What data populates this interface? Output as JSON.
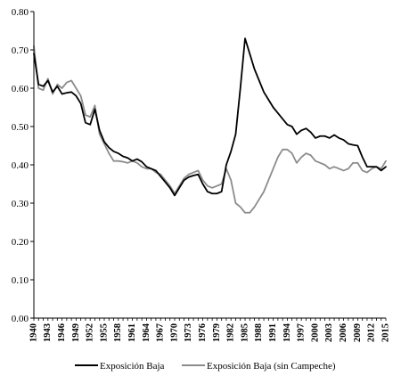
{
  "chart_data": {
    "type": "line",
    "title": "",
    "xlabel": "",
    "ylabel": "",
    "ylim": [
      0,
      0.8
    ],
    "y_ticks": [
      "0.00",
      "0.10",
      "0.20",
      "0.30",
      "0.40",
      "0.50",
      "0.60",
      "0.70",
      "0.80"
    ],
    "xlim": [
      1940,
      2015
    ],
    "x_tick_labels": [
      "1940",
      "1943",
      "1946",
      "1949",
      "1952",
      "1955",
      "1958",
      "1961",
      "1964",
      "1967",
      "1970",
      "1973",
      "1976",
      "1979",
      "1982",
      "1985",
      "1988",
      "1991",
      "1994",
      "1997",
      "2000",
      "2003",
      "2006",
      "2009",
      "2012",
      "2015"
    ],
    "grid": false,
    "legend_position": "bottom",
    "x": [
      1940,
      1941,
      1942,
      1943,
      1944,
      1945,
      1946,
      1947,
      1948,
      1949,
      1950,
      1951,
      1952,
      1953,
      1954,
      1955,
      1956,
      1957,
      1958,
      1959,
      1960,
      1961,
      1962,
      1963,
      1964,
      1965,
      1966,
      1967,
      1968,
      1969,
      1970,
      1971,
      1972,
      1973,
      1974,
      1975,
      1976,
      1977,
      1978,
      1979,
      1980,
      1981,
      1982,
      1983,
      1984,
      1985,
      1986,
      1987,
      1988,
      1989,
      1990,
      1991,
      1992,
      1993,
      1994,
      1995,
      1996,
      1997,
      1998,
      1999,
      2000,
      2001,
      2002,
      2003,
      2004,
      2005,
      2006,
      2007,
      2008,
      2009,
      2010,
      2011,
      2012,
      2013,
      2014,
      2015
    ],
    "series": [
      {
        "name": "Exposición Baja",
        "color": "#000000",
        "values": [
          0.69,
          0.61,
          0.605,
          0.62,
          0.59,
          0.605,
          0.585,
          0.588,
          0.59,
          0.58,
          0.56,
          0.51,
          0.505,
          0.545,
          0.49,
          0.46,
          0.445,
          0.435,
          0.43,
          0.422,
          0.418,
          0.41,
          0.415,
          0.408,
          0.395,
          0.39,
          0.385,
          0.37,
          0.355,
          0.34,
          0.32,
          0.34,
          0.36,
          0.368,
          0.372,
          0.375,
          0.35,
          0.33,
          0.325,
          0.325,
          0.33,
          0.4,
          0.435,
          0.48,
          0.6,
          0.73,
          0.69,
          0.65,
          0.62,
          0.59,
          0.57,
          0.55,
          0.535,
          0.52,
          0.505,
          0.5,
          0.48,
          0.49,
          0.495,
          0.485,
          0.47,
          0.475,
          0.475,
          0.47,
          0.478,
          0.47,
          0.465,
          0.455,
          0.452,
          0.45,
          0.42,
          0.395,
          0.395,
          0.395,
          0.385,
          0.395
        ]
      },
      {
        "name": "Exposición Baja (sin Campeche)",
        "color": "#8c8c8c",
        "values": [
          0.71,
          0.6,
          0.595,
          0.625,
          0.585,
          0.61,
          0.6,
          0.615,
          0.62,
          0.6,
          0.58,
          0.53,
          0.525,
          0.555,
          0.48,
          0.455,
          0.43,
          0.41,
          0.41,
          0.408,
          0.405,
          0.41,
          0.405,
          0.395,
          0.39,
          0.39,
          0.38,
          0.375,
          0.36,
          0.345,
          0.325,
          0.345,
          0.365,
          0.375,
          0.38,
          0.385,
          0.36,
          0.345,
          0.34,
          0.345,
          0.35,
          0.39,
          0.36,
          0.3,
          0.29,
          0.275,
          0.275,
          0.29,
          0.31,
          0.33,
          0.36,
          0.39,
          0.42,
          0.44,
          0.44,
          0.43,
          0.405,
          0.42,
          0.43,
          0.425,
          0.41,
          0.405,
          0.4,
          0.39,
          0.395,
          0.39,
          0.385,
          0.39,
          0.405,
          0.405,
          0.385,
          0.38,
          0.39,
          0.395,
          0.39,
          0.41
        ]
      }
    ]
  }
}
